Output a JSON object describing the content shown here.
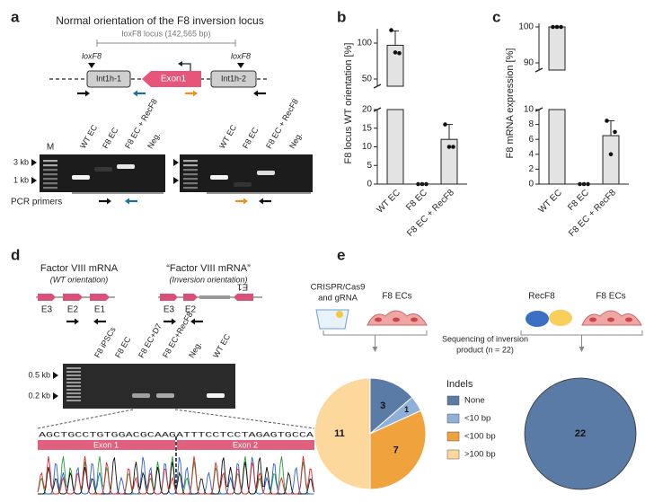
{
  "panel_labels": [
    "a",
    "b",
    "c",
    "d",
    "e"
  ],
  "panel_a": {
    "title": "Normal orientation of the F8 inversion locus",
    "locus": "loxF8 locus (142,565 bp)",
    "lox_labels": [
      "loxF8",
      "loxF8"
    ],
    "elements": [
      "Int1h-1",
      "Exon1",
      "Int1h-2"
    ],
    "marker_label": "M",
    "size_labels": [
      "3 kb",
      "1 kb"
    ],
    "gel1_lanes": [
      "WT EC",
      "F8 EC",
      "F8 EC + RecF8",
      "Neg."
    ],
    "gel2_lanes": [
      "WT EC",
      "F8 EC",
      "F8 EC + RecF8",
      "Neg."
    ],
    "primers_label": "PCR primers"
  },
  "panel_d": {
    "wt_title": "Factor VIII mRNA",
    "wt_sub": "(WT orientation)",
    "inv_title": "“Factor VIII mRNA”",
    "inv_sub": "(Inversion orientation)",
    "wt_exons": [
      "E3",
      "E2",
      "E1"
    ],
    "inv_exons": [
      "E3",
      "E2",
      "E1"
    ],
    "size_labels": [
      "0.5 kb",
      "0.2 kb"
    ],
    "gel_lanes": [
      "F8 iPSCs",
      "F8 EC",
      "F8 EC+D7",
      "F8 EC+RecF8",
      "Neg.",
      "WT EC"
    ],
    "sequence": "AGCTGCCTGTGGACGCAAGATTTCCTCCTAGAGTGCCA",
    "exon_bars": [
      "Exon 1",
      "Exon 2"
    ]
  },
  "panel_e": {
    "crispr": [
      "CRISPR/Cas9",
      "and gRNA"
    ],
    "cells_left": "F8 ECs",
    "recf8": "RecF8",
    "cells_right": "F8 ECs",
    "sequencing": [
      "Sequencing of inversion",
      "product (n = 22)"
    ]
  },
  "chart_data": [
    {
      "type": "broken_bar",
      "ylabel": "F8 locus WT orientation [%]",
      "categories": [
        "WT EC",
        "F8 EC",
        "F8 EC + RecF8"
      ],
      "values": [
        97,
        0,
        12
      ],
      "errors": [
        20,
        0,
        4
      ],
      "points": [
        [
          118,
          87,
          86
        ],
        [
          0,
          0,
          0
        ],
        [
          16,
          10,
          10
        ]
      ],
      "color": "#e3e3e3",
      "segments": [
        {
          "ylim": [
            0,
            20
          ],
          "yticks": [
            0,
            5,
            10,
            15,
            20
          ]
        },
        {
          "ylim": [
            40,
            120
          ],
          "yticks": [
            50,
            100
          ]
        }
      ]
    },
    {
      "type": "broken_bar",
      "ylabel": "F8 mRNA expression [%]",
      "categories": [
        "WT EC",
        "F8 EC",
        "F8 EC + RecF8"
      ],
      "values": [
        100,
        0,
        6.5
      ],
      "errors": [
        0,
        0,
        2
      ],
      "points": [
        [
          100,
          100,
          100
        ],
        [
          0,
          0,
          0
        ],
        [
          8.5,
          4,
          7
        ]
      ],
      "color": "#e3e3e3",
      "segments": [
        {
          "ylim": [
            0,
            10
          ],
          "yticks": [
            0,
            2,
            4,
            6,
            8,
            10
          ]
        },
        {
          "ylim": [
            88,
            101
          ],
          "yticks": [
            90,
            100
          ]
        }
      ]
    },
    {
      "type": "pie",
      "legend_title": "Indels",
      "categories": [
        "None",
        "<10 bp",
        "<100 bp",
        ">100 bp"
      ],
      "values": [
        3,
        1,
        7,
        11
      ],
      "colors": [
        "#5a7ba5",
        "#8fb0d8",
        "#f0a23c",
        "#fcd89c"
      ]
    },
    {
      "type": "pie",
      "values": [
        22
      ],
      "colors": [
        "#5a7ba5"
      ]
    }
  ]
}
